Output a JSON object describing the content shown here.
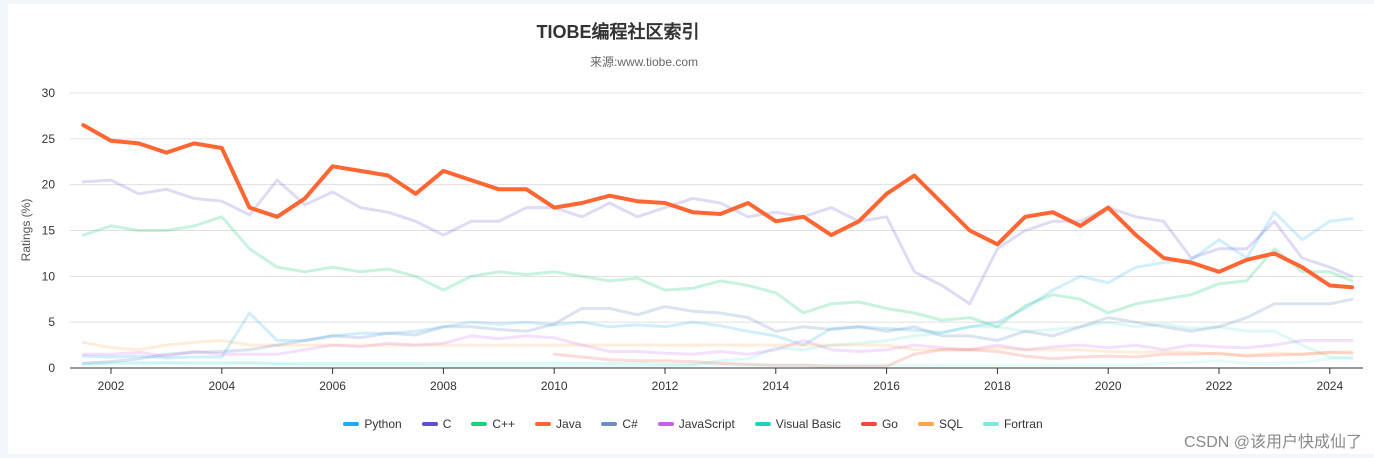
{
  "title": "TIOBE编程社区索引",
  "subtitle": "来源:www.tiobe.com",
  "watermark": "CSDN @该用户快成仙了",
  "chart_data": {
    "type": "line",
    "title": "TIOBE编程社区索引",
    "subtitle": "来源:www.tiobe.com",
    "xlabel": "",
    "ylabel": "Ratings (%)",
    "ylim": [
      0,
      30
    ],
    "yticks": [
      0,
      5,
      10,
      15,
      20,
      25,
      30
    ],
    "xticks": [
      "2002",
      "2004",
      "2006",
      "2008",
      "2010",
      "2012",
      "2014",
      "2016",
      "2018",
      "2020",
      "2022",
      "2024"
    ],
    "xrange": [
      2001.5,
      2024.4
    ],
    "grid": true,
    "legend_position": "bottom",
    "x": [
      2001.5,
      2002.0,
      2002.5,
      2003.0,
      2003.5,
      2004.0,
      2004.5,
      2005.0,
      2005.5,
      2006.0,
      2006.5,
      2007.0,
      2007.5,
      2008.0,
      2008.5,
      2009.0,
      2009.5,
      2010.0,
      2010.5,
      2011.0,
      2011.5,
      2012.0,
      2012.5,
      2013.0,
      2013.5,
      2014.0,
      2014.5,
      2015.0,
      2015.5,
      2016.0,
      2016.5,
      2017.0,
      2017.5,
      2018.0,
      2018.5,
      2019.0,
      2019.5,
      2020.0,
      2020.5,
      2021.0,
      2021.5,
      2022.0,
      2022.5,
      2023.0,
      2023.5,
      2024.0,
      2024.4
    ],
    "series": [
      {
        "name": "Python",
        "color": "#1fa9f5",
        "opacity": 0.2,
        "width": 3,
        "values": [
          1.3,
          1.2,
          1.3,
          1.1,
          1.2,
          1.2,
          6.0,
          3.0,
          3.0,
          3.5,
          3.8,
          3.8,
          4.0,
          4.5,
          5.0,
          4.8,
          5.0,
          4.7,
          5.0,
          4.5,
          4.7,
          4.5,
          5.0,
          4.6,
          4.0,
          3.5,
          2.5,
          4.3,
          4.5,
          4.3,
          4.1,
          3.9,
          4.5,
          5.0,
          6.5,
          8.5,
          10.0,
          9.3,
          11.0,
          11.5,
          11.8,
          14.0,
          12.0,
          17.0,
          14.0,
          16.0,
          16.3
        ]
      },
      {
        "name": "C",
        "color": "#5a4fcf",
        "opacity": 0.2,
        "width": 3,
        "values": [
          20.3,
          20.5,
          19.0,
          19.5,
          18.5,
          18.2,
          16.7,
          20.5,
          17.8,
          19.2,
          17.5,
          17.0,
          16.0,
          14.5,
          16.0,
          16.0,
          17.5,
          17.5,
          16.5,
          18.0,
          16.5,
          17.5,
          18.5,
          18.0,
          16.5,
          17.0,
          16.5,
          17.5,
          16.0,
          16.5,
          10.5,
          9.0,
          7.0,
          13.0,
          15.0,
          16.0,
          16.0,
          17.5,
          16.5,
          16.0,
          12.0,
          13.0,
          13.0,
          16.0,
          12.0,
          11.0,
          10.0
        ]
      },
      {
        "name": "C++",
        "color": "#1fd17a",
        "opacity": 0.25,
        "width": 3,
        "values": [
          14.5,
          15.5,
          15.0,
          15.0,
          15.5,
          16.5,
          13.0,
          11.0,
          10.5,
          11.0,
          10.5,
          10.8,
          10.0,
          8.5,
          10.0,
          10.5,
          10.2,
          10.5,
          10.0,
          9.5,
          9.8,
          8.5,
          8.7,
          9.5,
          9.0,
          8.2,
          6.0,
          7.0,
          7.2,
          6.5,
          6.0,
          5.2,
          5.5,
          4.5,
          6.8,
          8.0,
          7.5,
          6.0,
          7.0,
          7.5,
          8.0,
          9.2,
          9.5,
          13.0,
          10.5,
          10.5,
          9.5
        ]
      },
      {
        "name": "Java",
        "color": "#ff6633",
        "opacity": 1.0,
        "width": 4,
        "values": [
          26.5,
          24.8,
          24.5,
          23.5,
          24.5,
          24.0,
          17.5,
          16.5,
          18.5,
          22.0,
          21.5,
          21.0,
          19.0,
          21.5,
          20.5,
          19.5,
          19.5,
          17.5,
          18.0,
          18.8,
          18.2,
          18.0,
          17.0,
          16.8,
          18.0,
          16.0,
          16.5,
          14.5,
          16.0,
          19.0,
          21.0,
          18.0,
          15.0,
          13.5,
          16.5,
          17.0,
          15.5,
          17.5,
          14.5,
          12.0,
          11.5,
          10.5,
          11.8,
          12.5,
          11.0,
          9.0,
          8.8
        ]
      },
      {
        "name": "C#",
        "color": "#6b8fc4",
        "opacity": 0.25,
        "width": 3,
        "values": [
          0.5,
          0.7,
          1.0,
          1.5,
          1.7,
          1.8,
          2.0,
          2.5,
          3.0,
          3.5,
          3.3,
          3.8,
          3.6,
          4.5,
          4.5,
          4.2,
          4.0,
          4.8,
          6.5,
          6.5,
          5.8,
          6.7,
          6.2,
          6.0,
          5.5,
          4.0,
          4.5,
          4.2,
          4.5,
          4.0,
          4.5,
          3.5,
          3.5,
          3.0,
          4.0,
          3.5,
          4.5,
          5.5,
          5.0,
          4.5,
          4.0,
          4.5,
          5.5,
          7.0,
          7.0,
          7.0,
          7.5
        ]
      },
      {
        "name": "JavaScript",
        "color": "#c85ef0",
        "opacity": 0.2,
        "width": 3,
        "values": [
          1.5,
          1.5,
          1.7,
          1.3,
          1.8,
          1.5,
          1.5,
          1.5,
          2.0,
          2.5,
          2.3,
          2.7,
          2.5,
          2.7,
          3.5,
          3.2,
          3.5,
          3.3,
          2.5,
          1.8,
          1.8,
          1.6,
          1.5,
          1.8,
          1.5,
          2.0,
          3.0,
          2.0,
          1.8,
          2.0,
          2.5,
          2.2,
          2.0,
          2.5,
          2.0,
          2.3,
          2.5,
          2.2,
          2.5,
          2.0,
          2.5,
          2.3,
          2.2,
          2.5,
          3.0,
          3.0,
          3.0
        ]
      },
      {
        "name": "Visual Basic",
        "color": "#1fd1c0",
        "opacity": 0.15,
        "width": 3,
        "values": [
          0.5,
          0.6,
          0.6,
          0.6,
          0.6,
          0.6,
          0.6,
          0.5,
          0.5,
          0.5,
          0.5,
          0.5,
          0.5,
          0.5,
          0.5,
          0.5,
          0.5,
          0.5,
          0.5,
          0.5,
          0.5,
          0.4,
          0.4,
          0.8,
          1.0,
          2.2,
          2.0,
          2.5,
          2.7,
          3.0,
          3.5,
          3.8,
          4.5,
          4.5,
          4.0,
          4.2,
          4.5,
          5.0,
          4.5,
          4.8,
          4.3,
          4.5,
          4.0,
          4.0,
          2.5,
          1.2,
          1.0
        ]
      },
      {
        "name": "Go",
        "color": "#f04a3a",
        "opacity": 0.2,
        "width": 3,
        "values": [
          null,
          null,
          null,
          null,
          null,
          null,
          null,
          null,
          null,
          null,
          null,
          null,
          null,
          null,
          null,
          null,
          null,
          1.5,
          1.2,
          0.9,
          0.8,
          0.8,
          0.7,
          0.5,
          0.4,
          0.3,
          0.3,
          0.2,
          0.2,
          0.2,
          1.5,
          2.0,
          2.0,
          1.8,
          1.3,
          1.0,
          1.2,
          1.3,
          1.2,
          1.5,
          1.5,
          1.6,
          1.3,
          1.4,
          1.5,
          1.7,
          1.6
        ]
      },
      {
        "name": "SQL",
        "color": "#ffa34d",
        "opacity": 0.2,
        "width": 3,
        "values": [
          2.8,
          2.2,
          2.0,
          2.5,
          2.8,
          3.0,
          2.5,
          2.5,
          2.5,
          2.5,
          2.5,
          2.5,
          2.5,
          2.5,
          2.5,
          2.5,
          2.5,
          2.5,
          2.5,
          2.5,
          2.5,
          2.5,
          2.5,
          2.5,
          2.5,
          2.5,
          2.5,
          2.5,
          2.5,
          2.5,
          2.0,
          2.0,
          2.0,
          2.2,
          2.0,
          2.0,
          2.0,
          1.8,
          1.7,
          1.8,
          1.7,
          1.5,
          1.4,
          1.6,
          1.5,
          1.7,
          1.8
        ]
      },
      {
        "name": "Fortran",
        "color": "#7de8e0",
        "opacity": 0.2,
        "width": 3,
        "values": [
          0.3,
          0.4,
          0.4,
          0.5,
          0.4,
          0.4,
          0.5,
          0.4,
          0.3,
          0.3,
          0.3,
          0.3,
          0.3,
          0.2,
          0.2,
          0.2,
          0.2,
          0.2,
          0.2,
          0.2,
          0.2,
          0.2,
          0.3,
          0.4,
          0.3,
          0.3,
          0.3,
          0.3,
          0.3,
          0.3,
          0.3,
          0.3,
          0.3,
          0.3,
          0.3,
          0.3,
          0.3,
          0.3,
          0.3,
          0.5,
          0.6,
          0.8,
          0.5,
          0.5,
          0.6,
          1.0,
          1.2
        ]
      }
    ]
  },
  "legend": [
    {
      "name": "Python",
      "color": "#1fa9f5"
    },
    {
      "name": "C",
      "color": "#5a4fcf"
    },
    {
      "name": "C++",
      "color": "#1fd17a"
    },
    {
      "name": "Java",
      "color": "#ff6633"
    },
    {
      "name": "C#",
      "color": "#6b8fc4"
    },
    {
      "name": "JavaScript",
      "color": "#c85ef0"
    },
    {
      "name": "Visual Basic",
      "color": "#1fd1c0"
    },
    {
      "name": "Go",
      "color": "#f04a3a"
    },
    {
      "name": "SQL",
      "color": "#ffa34d"
    },
    {
      "name": "Fortran",
      "color": "#7de8e0"
    }
  ]
}
